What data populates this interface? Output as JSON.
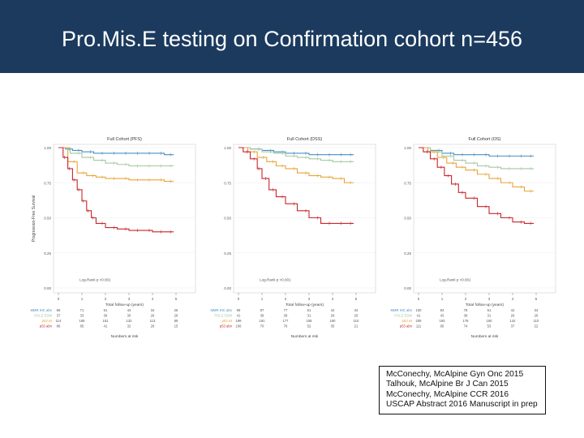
{
  "slide_title": "Pro.Mis.E testing on Confirmation cohort n=456",
  "colors": {
    "title_bg": "#1b3a5e",
    "mmr_ihc": "#4a8fc4",
    "pole": "#a6c8a0",
    "p53_wt": "#e8a43a",
    "p53_abn": "#c8262c"
  },
  "chart_data": [
    {
      "type": "line",
      "title": "Full Cohort (PFS)",
      "ylabel": "Progression-Free Survival",
      "xlabel": "Total follow-up (years)",
      "ylim": [
        0,
        1
      ],
      "xlim": [
        0,
        5
      ],
      "xticks": [
        "0",
        "1",
        "2",
        "3",
        "4",
        "5"
      ],
      "yticks": [
        "0.00",
        "0.25",
        "0.50",
        "0.75",
        "1.00"
      ],
      "pvalue": "Log-Rank p <0.001",
      "risk_title": "Numbers at risk",
      "risk_labels": [
        "MMR IHC abn",
        "POLE EDM",
        "p53 wt",
        "p53 abn"
      ],
      "risk_table": [
        [
          86,
          71,
          61,
          43,
          34,
          26
        ],
        [
          37,
          33,
          36,
          30,
          26,
          28
        ],
        [
          114,
          165,
          151,
          132,
          113,
          89
        ],
        [
          86,
          65,
          41,
          32,
          26,
          15
        ]
      ],
      "series": [
        {
          "name": "MMR IHC abn",
          "color": "#4a8fc4",
          "x": [
            0,
            0.3,
            0.6,
            1,
            1.5,
            2,
            2.5,
            3,
            3.5,
            4,
            4.5,
            4.9
          ],
          "y": [
            1,
            0.99,
            0.98,
            0.97,
            0.96,
            0.96,
            0.96,
            0.96,
            0.96,
            0.96,
            0.95,
            0.95
          ]
        },
        {
          "name": "POLE EDM",
          "color": "#a6c8a0",
          "x": [
            0,
            0.5,
            1,
            1.5,
            2,
            2.5,
            3,
            3.5,
            4,
            4.5,
            4.9
          ],
          "y": [
            1,
            0.96,
            0.93,
            0.91,
            0.89,
            0.88,
            0.87,
            0.87,
            0.87,
            0.87,
            0.87
          ]
        },
        {
          "name": "p53 wt",
          "color": "#e8a43a",
          "x": [
            0,
            0.4,
            0.8,
            1.2,
            1.6,
            2,
            2.5,
            3,
            3.5,
            4,
            4.5,
            4.9
          ],
          "y": [
            1,
            0.9,
            0.82,
            0.8,
            0.79,
            0.78,
            0.78,
            0.77,
            0.77,
            0.77,
            0.76,
            0.76
          ]
        },
        {
          "name": "p53 abn",
          "color": "#c8262c",
          "x": [
            0,
            0.2,
            0.4,
            0.6,
            0.8,
            1,
            1.2,
            1.4,
            1.6,
            2,
            2.5,
            3,
            3.5,
            4,
            4.5,
            4.9
          ],
          "y": [
            1,
            0.93,
            0.85,
            0.77,
            0.7,
            0.62,
            0.55,
            0.5,
            0.46,
            0.43,
            0.42,
            0.41,
            0.41,
            0.4,
            0.4,
            0.4
          ]
        }
      ]
    },
    {
      "type": "line",
      "title": "Full Cohort (DSS)",
      "ylabel": "",
      "xlabel": "Total follow-up (years)",
      "ylim": [
        0,
        1
      ],
      "xlim": [
        0,
        5
      ],
      "xticks": [
        "0",
        "1",
        "2",
        "3",
        "4",
        "5"
      ],
      "yticks": [
        "0.00",
        "0.25",
        "0.50",
        "0.75",
        "1.00"
      ],
      "pvalue": "Log-Rank p <0.001",
      "risk_title": "Numbers at risk",
      "risk_labels": [
        "MMR IHC abn",
        "POLE EDM",
        "p53 wt",
        "p53 abn"
      ],
      "risk_table": [
        [
          99,
          87,
          77,
          51,
          42,
          34
        ],
        [
          41,
          39,
          39,
          31,
          26,
          26
        ],
        [
          199,
          181,
          177,
          158,
          160,
          110
        ],
        [
          106,
          70,
          76,
          52,
          35,
          21
        ]
      ],
      "series": [
        {
          "name": "MMR IHC abn",
          "color": "#4a8fc4",
          "x": [
            0,
            0.5,
            1,
            1.5,
            2,
            2.5,
            3,
            3.5,
            4,
            4.5,
            4.9
          ],
          "y": [
            1,
            0.99,
            0.98,
            0.97,
            0.96,
            0.96,
            0.95,
            0.95,
            0.95,
            0.95,
            0.95
          ]
        },
        {
          "name": "POLE EDM",
          "color": "#a6c8a0",
          "x": [
            0,
            0.5,
            1,
            1.5,
            2,
            2.5,
            3,
            3.5,
            4,
            4.5,
            4.9
          ],
          "y": [
            1,
            0.99,
            0.97,
            0.96,
            0.94,
            0.93,
            0.92,
            0.91,
            0.9,
            0.9,
            0.9
          ]
        },
        {
          "name": "p53 wt",
          "color": "#e8a43a",
          "x": [
            0,
            0.4,
            0.8,
            1.2,
            1.6,
            2,
            2.5,
            3,
            3.5,
            4,
            4.5,
            4.9
          ],
          "y": [
            1,
            0.97,
            0.93,
            0.9,
            0.87,
            0.85,
            0.82,
            0.8,
            0.79,
            0.78,
            0.75,
            0.75
          ]
        },
        {
          "name": "p53 abn",
          "color": "#c8262c",
          "x": [
            0,
            0.2,
            0.5,
            0.8,
            1,
            1.3,
            1.6,
            2,
            2.5,
            3,
            3.5,
            4,
            4.5,
            4.9
          ],
          "y": [
            1,
            0.97,
            0.92,
            0.85,
            0.78,
            0.7,
            0.65,
            0.6,
            0.55,
            0.5,
            0.46,
            0.46,
            0.46,
            0.46
          ]
        }
      ]
    },
    {
      "type": "line",
      "title": "Full Cohort (OS)",
      "ylabel": "",
      "xlabel": "Total follow-up (years)",
      "ylim": [
        0,
        1
      ],
      "xlim": [
        0,
        5
      ],
      "xticks": [
        "0",
        "1",
        "2",
        "3",
        "4",
        "5"
      ],
      "yticks": [
        "0.00",
        "0.25",
        "0.50",
        "0.75",
        "1.00"
      ],
      "pvalue": "Log-Rank p <0.001",
      "risk_title": "Numbers at risk",
      "risk_labels": [
        "MMR IHC abn",
        "POLE EDM",
        "p53 wt",
        "p53 abn"
      ],
      "risk_table": [
        [
          100,
          83,
          78,
          51,
          42,
          34
        ],
        [
          41,
          43,
          39,
          31,
          26,
          26
        ],
        [
          209,
          193,
          178,
          160,
          142,
          110
        ],
        [
          111,
          95,
          74,
          53,
          37,
          22
        ]
      ],
      "series": [
        {
          "name": "MMR IHC abn",
          "color": "#4a8fc4",
          "x": [
            0,
            0.5,
            1,
            1.5,
            2,
            2.5,
            3,
            3.5,
            4,
            4.5,
            4.9
          ],
          "y": [
            1,
            0.98,
            0.96,
            0.95,
            0.95,
            0.95,
            0.94,
            0.94,
            0.94,
            0.94,
            0.94
          ]
        },
        {
          "name": "POLE EDM",
          "color": "#a6c8a0",
          "x": [
            0,
            0.5,
            1,
            1.5,
            2,
            2.5,
            3,
            3.5,
            4,
            4.5,
            4.9
          ],
          "y": [
            1,
            0.97,
            0.94,
            0.91,
            0.89,
            0.87,
            0.86,
            0.85,
            0.85,
            0.85,
            0.85
          ]
        },
        {
          "name": "p53 wt",
          "color": "#e8a43a",
          "x": [
            0,
            0.4,
            0.8,
            1.2,
            1.6,
            2,
            2.5,
            3,
            3.5,
            4,
            4.5,
            4.9
          ],
          "y": [
            1,
            0.97,
            0.93,
            0.89,
            0.86,
            0.84,
            0.81,
            0.78,
            0.75,
            0.72,
            0.69,
            0.69
          ]
        },
        {
          "name": "p53 abn",
          "color": "#c8262c",
          "x": [
            0,
            0.2,
            0.5,
            0.8,
            1.1,
            1.4,
            1.7,
            2,
            2.5,
            3,
            3.5,
            4,
            4.5,
            4.9
          ],
          "y": [
            1,
            0.97,
            0.92,
            0.86,
            0.8,
            0.74,
            0.68,
            0.64,
            0.58,
            0.53,
            0.5,
            0.47,
            0.46,
            0.46
          ]
        }
      ]
    }
  ],
  "references": [
    "McConechy, McAlpine Gyn Onc 2015",
    "Talhouk, McAlpine Br J Can 2015",
    "McConechy, McAlpine CCR 2016",
    "USCAP Abstract 2016 Manuscript in prep"
  ]
}
